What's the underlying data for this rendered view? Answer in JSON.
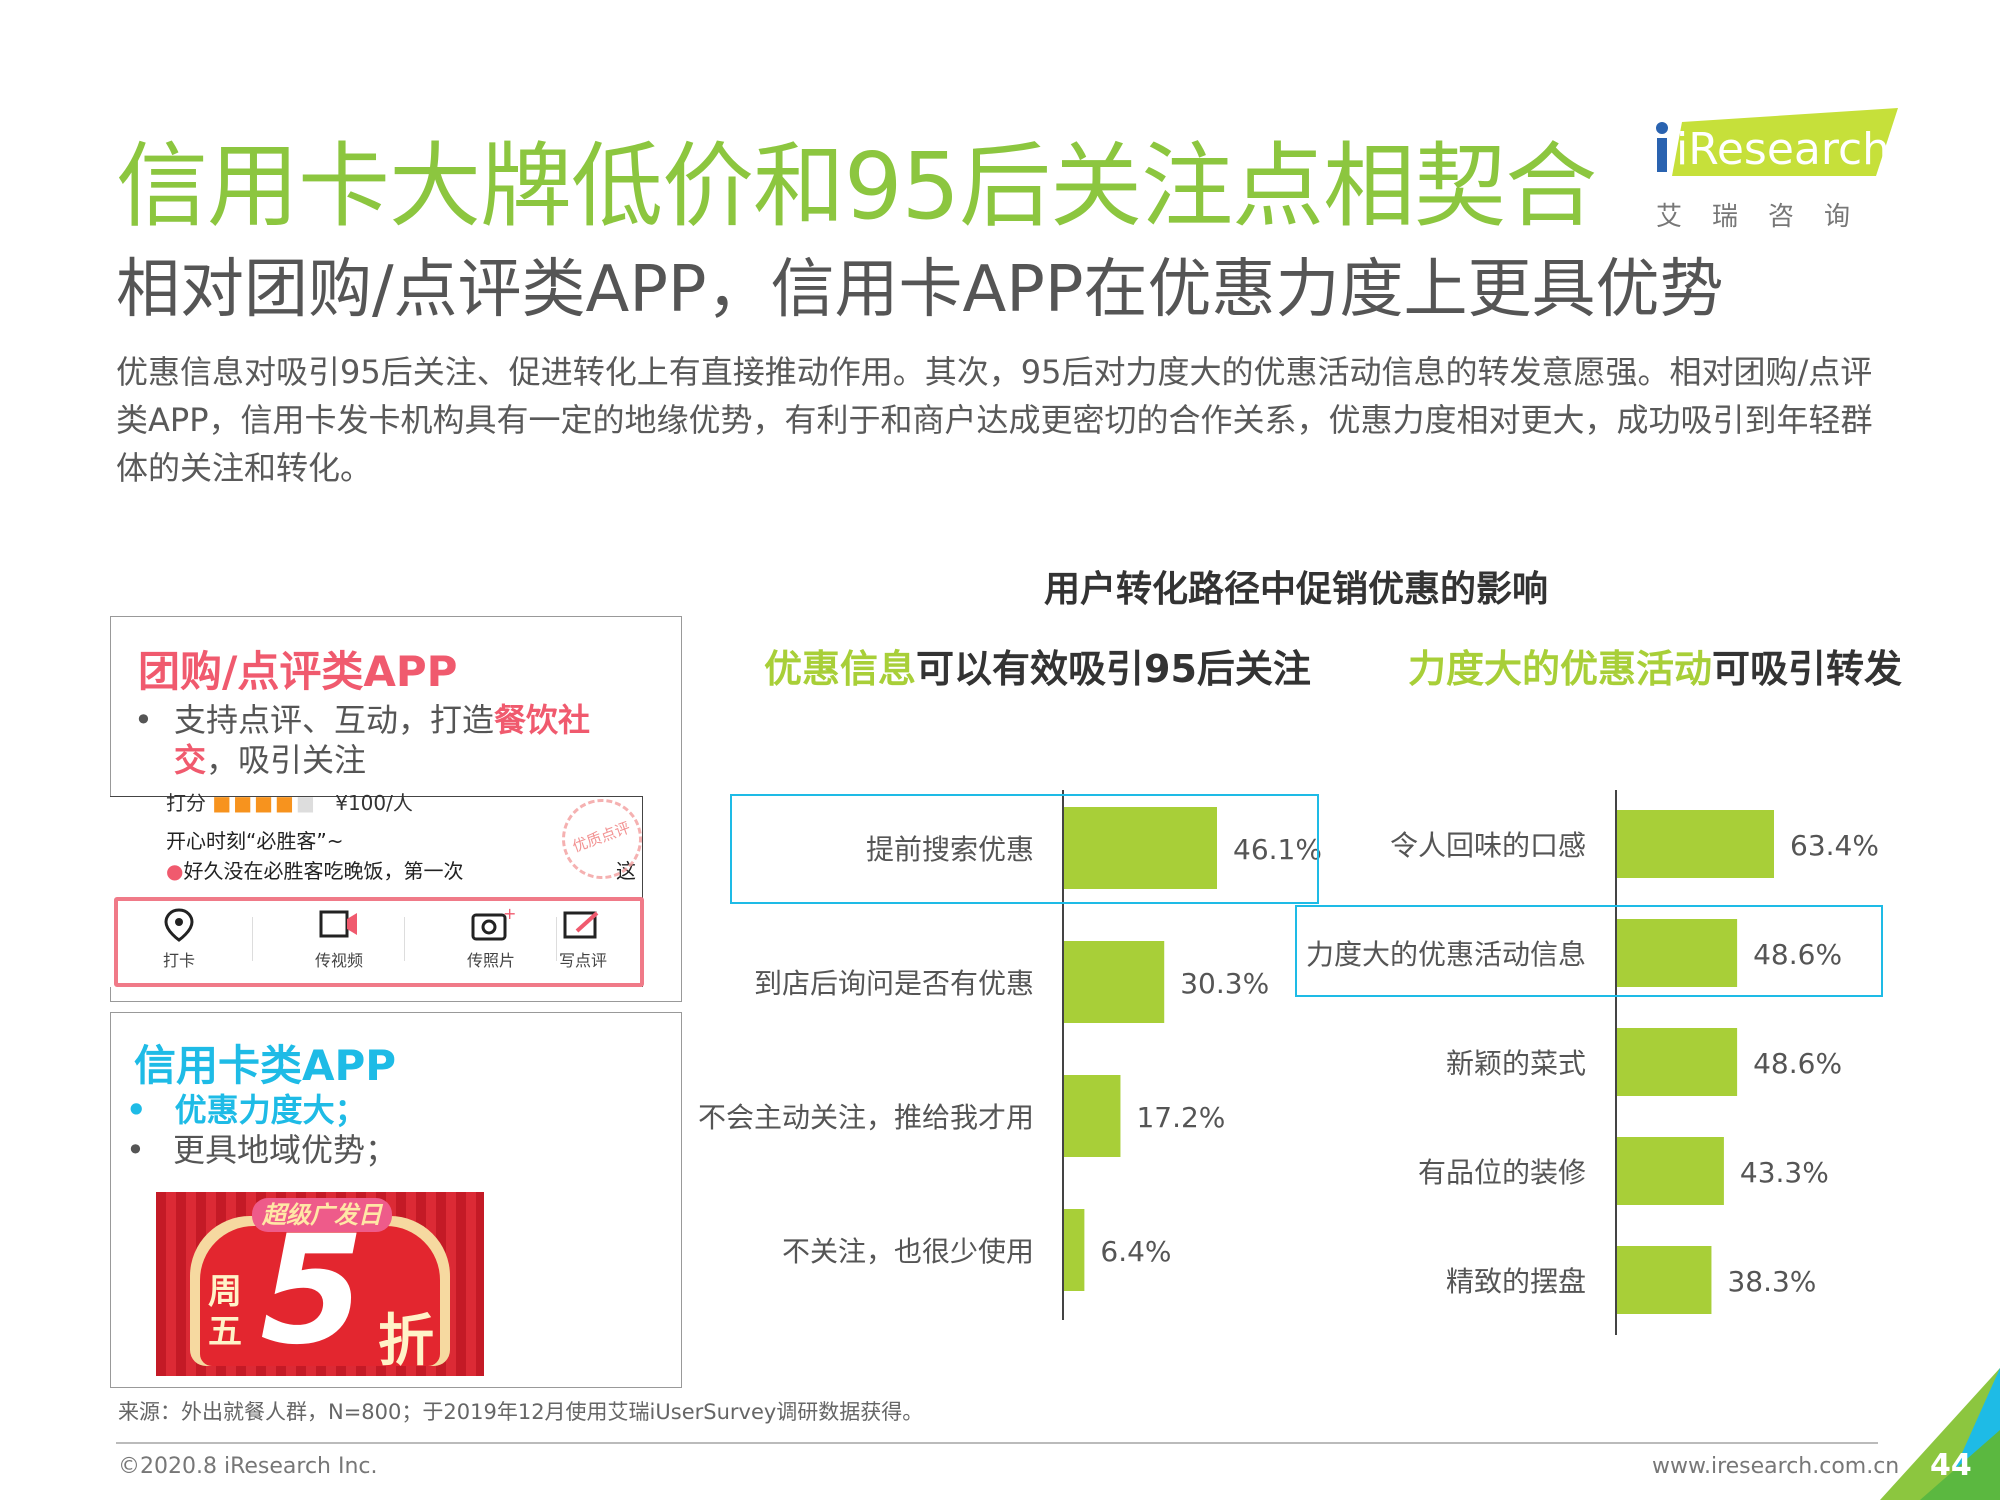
{
  "header": {
    "title": "信用卡大牌低价和95后关注点相契合",
    "subtitle": "相对团购/点评类APP，信用卡APP在优惠力度上更具优势",
    "description": "优惠信息对吸引95后关注、促进转化上有直接推动作用。其次，95后对力度大的优惠活动信息的转发意愿强。相对团购/点评类APP，信用卡发卡机构具有一定的地缘优势，有利于和商户达成更密切的合作关系，优惠力度相对更大，成功吸引到年轻群体的关注和转化。",
    "logo_text": "iResearch",
    "logo_cn": "艾瑞咨询"
  },
  "panel_group": {
    "title": "团购/点评类APP",
    "bullet_prefix": "支持点评、互动，打造",
    "bullet_highlight": "餐饮社交",
    "bullet_suffix": "，吸引关注",
    "screenshot": {
      "rating_label": "打分",
      "price": "¥100/人",
      "line1": "开心时刻“必胜客”~",
      "line2": "好久没在必胜客吃晚饭，第一次",
      "line3": "这",
      "stamp": "优质点评",
      "tabs": [
        "打卡",
        "传视频",
        "传照片",
        "写点评"
      ]
    }
  },
  "panel_credit": {
    "title": "信用卡类APP",
    "bullet1": "优惠力度大；",
    "bullet2": "更具地域优势；",
    "banner_top": "超级广发日",
    "banner_left": "周五",
    "banner_num": "5",
    "banner_right": "折"
  },
  "chart_data": {
    "title": "用户转化路径中促销优惠的影响",
    "charts": [
      {
        "type": "bar",
        "orientation": "horizontal",
        "subtitle_highlight": "优惠信息",
        "subtitle_rest": "可以有效吸引95后关注",
        "categories": [
          "提前搜索优惠",
          "到店后询问是否有优惠",
          "不会主动关注，推给我才用",
          "不关注，也很少使用"
        ],
        "values": [
          46.1,
          30.3,
          17.2,
          6.4
        ],
        "value_labels": [
          "46.1%",
          "30.3%",
          "17.2%",
          "6.4%"
        ],
        "highlighted_index": 0,
        "xlim": [
          0,
          70
        ]
      },
      {
        "type": "bar",
        "orientation": "horizontal",
        "subtitle_highlight": "力度大的优惠活动",
        "subtitle_rest": "可吸引转发",
        "categories": [
          "令人回味的口感",
          "力度大的优惠活动信息",
          "新颖的菜式",
          "有品位的装修",
          "精致的摆盘"
        ],
        "values": [
          63.4,
          48.6,
          48.6,
          43.3,
          38.3
        ],
        "value_labels": [
          "63.4%",
          "48.6%",
          "48.6%",
          "43.3%",
          "38.3%"
        ],
        "highlighted_index": 1,
        "xlim": [
          0,
          100
        ]
      }
    ],
    "bar_color": "#a8cf38",
    "highlight_color": "#1ebbe6"
  },
  "footer": {
    "source": "来源：外出就餐人群，N=800；于2019年12月使用艾瑞iUserSurvey调研数据获得。",
    "copyright": "©2020.8  iResearch Inc.",
    "url": "www.iresearch.com.cn",
    "page": "44"
  }
}
